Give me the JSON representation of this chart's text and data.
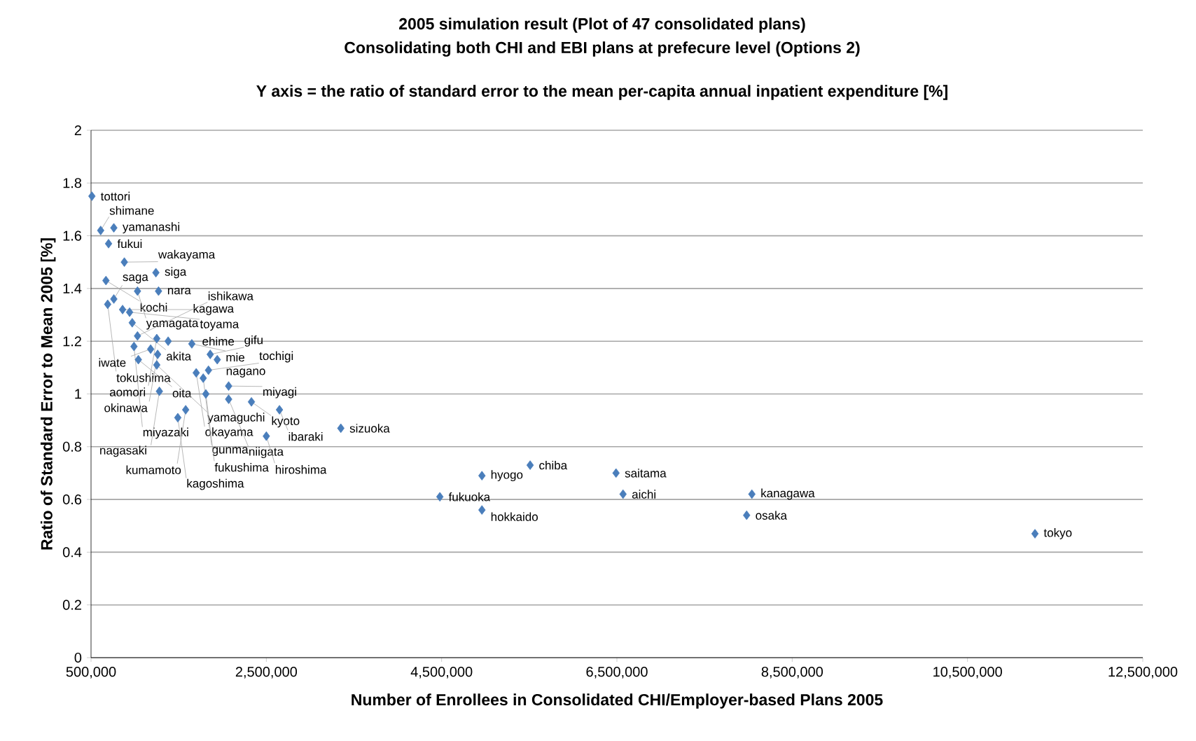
{
  "chart_data": {
    "type": "scatter",
    "title": "2005 simulation result (Plot of 47 consolidated plans)",
    "subtitle": "Consolidating both CHI and EBI plans at prefecure level (Options 2)",
    "xlabel": "Number of Enrollees in Consolidated CHI/Employer-based Plans 2005",
    "ylabel": "Ratio of Standard Error to Mean 2005 [%]",
    "xlim": [
      500000,
      12500000
    ],
    "xticks": [
      {
        "value": 500000,
        "label": "500,000"
      },
      {
        "value": 2500000,
        "label": "2,500,000"
      },
      {
        "value": 4500000,
        "label": "4,500,000"
      },
      {
        "value": 6500000,
        "label": "6,500,000"
      },
      {
        "value": 8500000,
        "label": "8,500,000"
      },
      {
        "value": 10500000,
        "label": "10,500,000"
      },
      {
        "value": 12500000,
        "label": "12,500,000"
      }
    ],
    "ylim": [
      0,
      2
    ],
    "yticks": [
      0,
      0.2,
      0.4,
      0.6,
      0.8,
      1,
      1.2,
      1.4,
      1.6,
      1.8,
      2
    ],
    "grid": "y",
    "marker": "diamond",
    "series": [
      {
        "color": "#4a7ebb",
        "x": [
          510000,
          610000,
          760000,
          700000,
          880000,
          1240000,
          670000,
          1030000,
          1270000,
          690000,
          760000,
          860000,
          940000,
          970000,
          1030000,
          1250000,
          1380000,
          1650000,
          990000,
          1180000,
          1260000,
          1040000,
          1250000,
          1860000,
          1940000,
          1840000,
          1700000,
          1780000,
          2070000,
          1280000,
          1810000,
          2070000,
          2330000,
          2650000,
          1580000,
          1490000,
          2500000,
          3350000,
          5510000,
          4960000,
          6490000,
          4480000,
          4960000,
          6570000,
          8040000,
          7980000,
          11270000
        ],
        "values": [
          1.75,
          1.62,
          1.63,
          1.57,
          1.5,
          1.46,
          1.43,
          1.39,
          1.39,
          1.34,
          1.36,
          1.32,
          1.31,
          1.27,
          1.22,
          1.21,
          1.2,
          1.19,
          1.18,
          1.17,
          1.15,
          1.13,
          1.11,
          1.15,
          1.13,
          1.09,
          1.08,
          1.06,
          1.03,
          1.01,
          1.0,
          0.98,
          0.97,
          0.94,
          0.94,
          0.91,
          0.84,
          0.87,
          0.73,
          0.69,
          0.7,
          0.61,
          0.56,
          0.62,
          0.62,
          0.54,
          0.47
        ]
      }
    ],
    "annotations": [
      "Y axis = the ratio of standard error to the mean per-capita annual inpatient expenditure [%]",
      {
        "text": "tottori",
        "x": 510000,
        "y": 1.75
      },
      {
        "text": "shimane",
        "x": 610000,
        "y": 1.62
      },
      {
        "text": "yamanashi",
        "x": 760000,
        "y": 1.63
      },
      {
        "text": "fukui",
        "x": 700000,
        "y": 1.57
      },
      {
        "text": "wakayama",
        "x": 880000,
        "y": 1.5
      },
      {
        "text": "siga",
        "x": 1240000,
        "y": 1.46
      },
      {
        "text": "kochi",
        "x": 670000,
        "y": 1.43
      },
      {
        "text": "yamagata",
        "x": 1030000,
        "y": 1.39
      },
      {
        "text": "nara",
        "x": 1270000,
        "y": 1.39
      },
      {
        "text": "tokushima",
        "x": 690000,
        "y": 1.34
      },
      {
        "text": "saga",
        "x": 760000,
        "y": 1.36
      },
      {
        "text": "kagawa",
        "x": 860000,
        "y": 1.32
      },
      {
        "text": "toyama",
        "x": 940000,
        "y": 1.31
      },
      {
        "text": "akita",
        "x": 970000,
        "y": 1.27
      },
      {
        "text": "ishikawa",
        "x": 1030000,
        "y": 1.22
      },
      {
        "text": "aomori",
        "x": 1250000,
        "y": 1.21
      },
      {
        "text": "ehime",
        "x": 1380000,
        "y": 1.2
      },
      {
        "text": "mie",
        "x": 1650000,
        "y": 1.19
      },
      {
        "text": "miyazaki",
        "x": 990000,
        "y": 1.18
      },
      {
        "text": "iwate",
        "x": 1180000,
        "y": 1.17
      },
      {
        "text": "okinawa",
        "x": 1260000,
        "y": 1.15
      },
      {
        "text": "oita",
        "x": 1040000,
        "y": 1.13
      },
      {
        "text": "yamaguchi",
        "x": 1250000,
        "y": 1.11
      },
      {
        "text": "gifu",
        "x": 1860000,
        "y": 1.15
      },
      {
        "text": "nagano",
        "x": 1940000,
        "y": 1.13
      },
      {
        "text": "tochigi",
        "x": 1840000,
        "y": 1.09
      },
      {
        "text": "okayama",
        "x": 1700000,
        "y": 1.08
      },
      {
        "text": "gunma",
        "x": 1780000,
        "y": 1.06
      },
      {
        "text": "miyagi",
        "x": 2070000,
        "y": 1.03
      },
      {
        "text": "nagasaki",
        "x": 1280000,
        "y": 1.01
      },
      {
        "text": "fukushima",
        "x": 1810000,
        "y": 1.0
      },
      {
        "text": "niigata",
        "x": 2070000,
        "y": 0.98
      },
      {
        "text": "kyoto",
        "x": 2330000,
        "y": 0.97
      },
      {
        "text": "ibaraki",
        "x": 2650000,
        "y": 0.94
      },
      {
        "text": "kumamoto",
        "x": 1580000,
        "y": 0.94
      },
      {
        "text": "kagoshima",
        "x": 1490000,
        "y": 0.91
      },
      {
        "text": "hiroshima",
        "x": 2500000,
        "y": 0.84
      },
      {
        "text": "sizuoka",
        "x": 3350000,
        "y": 0.87
      },
      {
        "text": "chiba",
        "x": 5510000,
        "y": 0.73
      },
      {
        "text": "hyogo",
        "x": 4960000,
        "y": 0.69
      },
      {
        "text": "saitama",
        "x": 6490000,
        "y": 0.7
      },
      {
        "text": "fukuoka",
        "x": 4480000,
        "y": 0.61
      },
      {
        "text": "hokkaido",
        "x": 4960000,
        "y": 0.56
      },
      {
        "text": "aichi",
        "x": 6570000,
        "y": 0.62
      },
      {
        "text": "kanagawa",
        "x": 8040000,
        "y": 0.62
      },
      {
        "text": "osaka",
        "x": 7980000,
        "y": 0.54
      },
      {
        "text": "tokyo",
        "x": 11270000,
        "y": 0.47
      }
    ]
  }
}
